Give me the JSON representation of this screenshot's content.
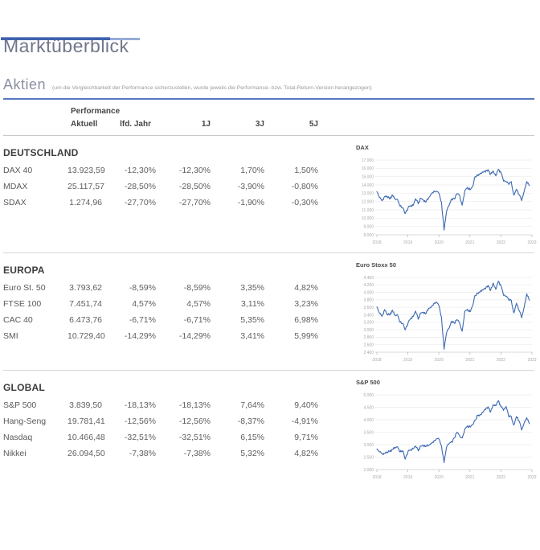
{
  "header": {
    "title": "Marktüberblick",
    "section_title": "Aktien",
    "section_note": "(um die Vergleichbarkeit der Performance sicherzustellen, wurde jeweils die Performance- bzw. Total-Return-Version herangezogen)"
  },
  "table": {
    "group_header": "Performance",
    "columns": {
      "c0": "Aktuell",
      "c1": "lfd. Jahr",
      "c2": "1J",
      "c3": "3J",
      "c4": "5J"
    },
    "sections": [
      {
        "name": "DEUTSCHLAND",
        "rows": [
          {
            "label": "DAX 40",
            "values": [
              "13.923,59",
              "-12,30%",
              "-12,30%",
              "1,70%",
              "1,50%"
            ]
          },
          {
            "label": "MDAX",
            "values": [
              "25.117,57",
              "-28,50%",
              "-28,50%",
              "-3,90%",
              "-0,80%"
            ]
          },
          {
            "label": "SDAX",
            "values": [
              "1.274,96",
              "-27,70%",
              "-27,70%",
              "-1,90%",
              "-0,30%"
            ]
          }
        ]
      },
      {
        "name": "EUROPA",
        "rows": [
          {
            "label": "Euro St. 50",
            "values": [
              "3.793,62",
              "-8,59%",
              "-8,59%",
              "3,35%",
              "4,82%"
            ]
          },
          {
            "label": "FTSE 100",
            "values": [
              "7.451,74",
              "4,57%",
              "4,57%",
              "3,11%",
              "3,23%"
            ]
          },
          {
            "label": "CAC 40",
            "values": [
              "6.473,76",
              "-6,71%",
              "-6,71%",
              "5,35%",
              "6,98%"
            ]
          },
          {
            "label": "SMI",
            "values": [
              "10.729,40",
              "-14,29%",
              "-14,29%",
              "3,41%",
              "5,99%"
            ]
          }
        ]
      },
      {
        "name": "GLOBAL",
        "rows": [
          {
            "label": "S&P 500",
            "values": [
              "3.839,50",
              "-18,13%",
              "-18,13%",
              "7,64%",
              "9,40%"
            ]
          },
          {
            "label": "Hang-Seng",
            "values": [
              "19.781,41",
              "-12,56%",
              "-12,56%",
              "-8,37%",
              "-4,91%"
            ]
          },
          {
            "label": "Nasdaq",
            "values": [
              "10.466,48",
              "-32,51%",
              "-32,51%",
              "6,15%",
              "9,71%"
            ]
          },
          {
            "label": "Nikkei",
            "values": [
              "26.094,50",
              "-7,38%",
              "-7,38%",
              "5,32%",
              "4,82%"
            ]
          }
        ]
      }
    ]
  },
  "chart_data": [
    {
      "type": "line",
      "title": "DAX",
      "x_labels": [
        "2018",
        "2019",
        "2020",
        "2021",
        "2022",
        "2023"
      ],
      "x_note": "monthly values Jan 2018 - Dec 2022",
      "ylim": [
        8000,
        17000
      ],
      "y_step": 1000,
      "legend": "none",
      "grid": "horizontal",
      "monthly_values": [
        13200,
        12480,
        12100,
        12600,
        12600,
        12300,
        12800,
        12360,
        12250,
        11450,
        11250,
        10560,
        11170,
        11500,
        11530,
        12340,
        11730,
        12400,
        12190,
        11940,
        12430,
        12870,
        13240,
        13250,
        12980,
        11890,
        8560,
        10860,
        11590,
        12310,
        12310,
        12950,
        12760,
        11560,
        13290,
        13720,
        13430,
        13790,
        15010,
        15140,
        15420,
        15530,
        15540,
        15840,
        15260,
        15690,
        15100,
        15880,
        15470,
        14460,
        14410,
        14080,
        14390,
        12780,
        13480,
        12830,
        12110,
        13250,
        14400,
        13920
      ]
    },
    {
      "type": "line",
      "title": "Euro Stoxx 50",
      "x_labels": [
        "2018",
        "2019",
        "2020",
        "2021",
        "2022",
        "2023"
      ],
      "x_note": "monthly values Jan 2018 - Dec 2022",
      "ylim": [
        2400,
        4400
      ],
      "y_step": 200,
      "legend": "none",
      "grid": "horizontal",
      "monthly_values": [
        3610,
        3440,
        3360,
        3540,
        3410,
        3395,
        3525,
        3390,
        3400,
        3200,
        3170,
        3000,
        3160,
        3300,
        3350,
        3500,
        3280,
        3450,
        3470,
        3430,
        3570,
        3600,
        3700,
        3745,
        3640,
        3330,
        2480,
        2930,
        3050,
        3230,
        3170,
        3270,
        3190,
        2960,
        3490,
        3550,
        3480,
        3640,
        3920,
        3970,
        4040,
        4060,
        4090,
        4190,
        4050,
        4250,
        4080,
        4300,
        4170,
        3920,
        3900,
        3800,
        3790,
        3450,
        3710,
        3520,
        3320,
        3610,
        3960,
        3790
      ]
    },
    {
      "type": "line",
      "title": "S&P 500",
      "x_labels": [
        "2018",
        "2019",
        "2020",
        "2021",
        "2022",
        "2023"
      ],
      "x_note": "monthly values Jan 2018 - Dec 2022",
      "ylim": [
        2000,
        5000
      ],
      "y_step": 500,
      "legend": "none",
      "grid": "horizontal",
      "monthly_values": [
        2820,
        2710,
        2640,
        2650,
        2700,
        2720,
        2815,
        2900,
        2915,
        2710,
        2760,
        2420,
        2705,
        2785,
        2835,
        2945,
        2750,
        2940,
        2980,
        2925,
        2975,
        3035,
        3140,
        3230,
        3225,
        2955,
        2280,
        2910,
        3045,
        3100,
        3270,
        3500,
        3360,
        3270,
        3620,
        3755,
        3715,
        3810,
        3975,
        4180,
        4205,
        4300,
        4395,
        4520,
        4310,
        4605,
        4565,
        4765,
        4515,
        4375,
        4530,
        4130,
        4130,
        3785,
        4130,
        3955,
        3585,
        3870,
        4080,
        3840
      ]
    }
  ],
  "colors": {
    "accent_bar_dark": "#3f62ad",
    "accent_bar_light": "#96abd9",
    "blue_rule": "#5577c0",
    "chart_line": "#3b68b2",
    "gridline": "#ececec",
    "axis_label": "#a8a8a8"
  }
}
